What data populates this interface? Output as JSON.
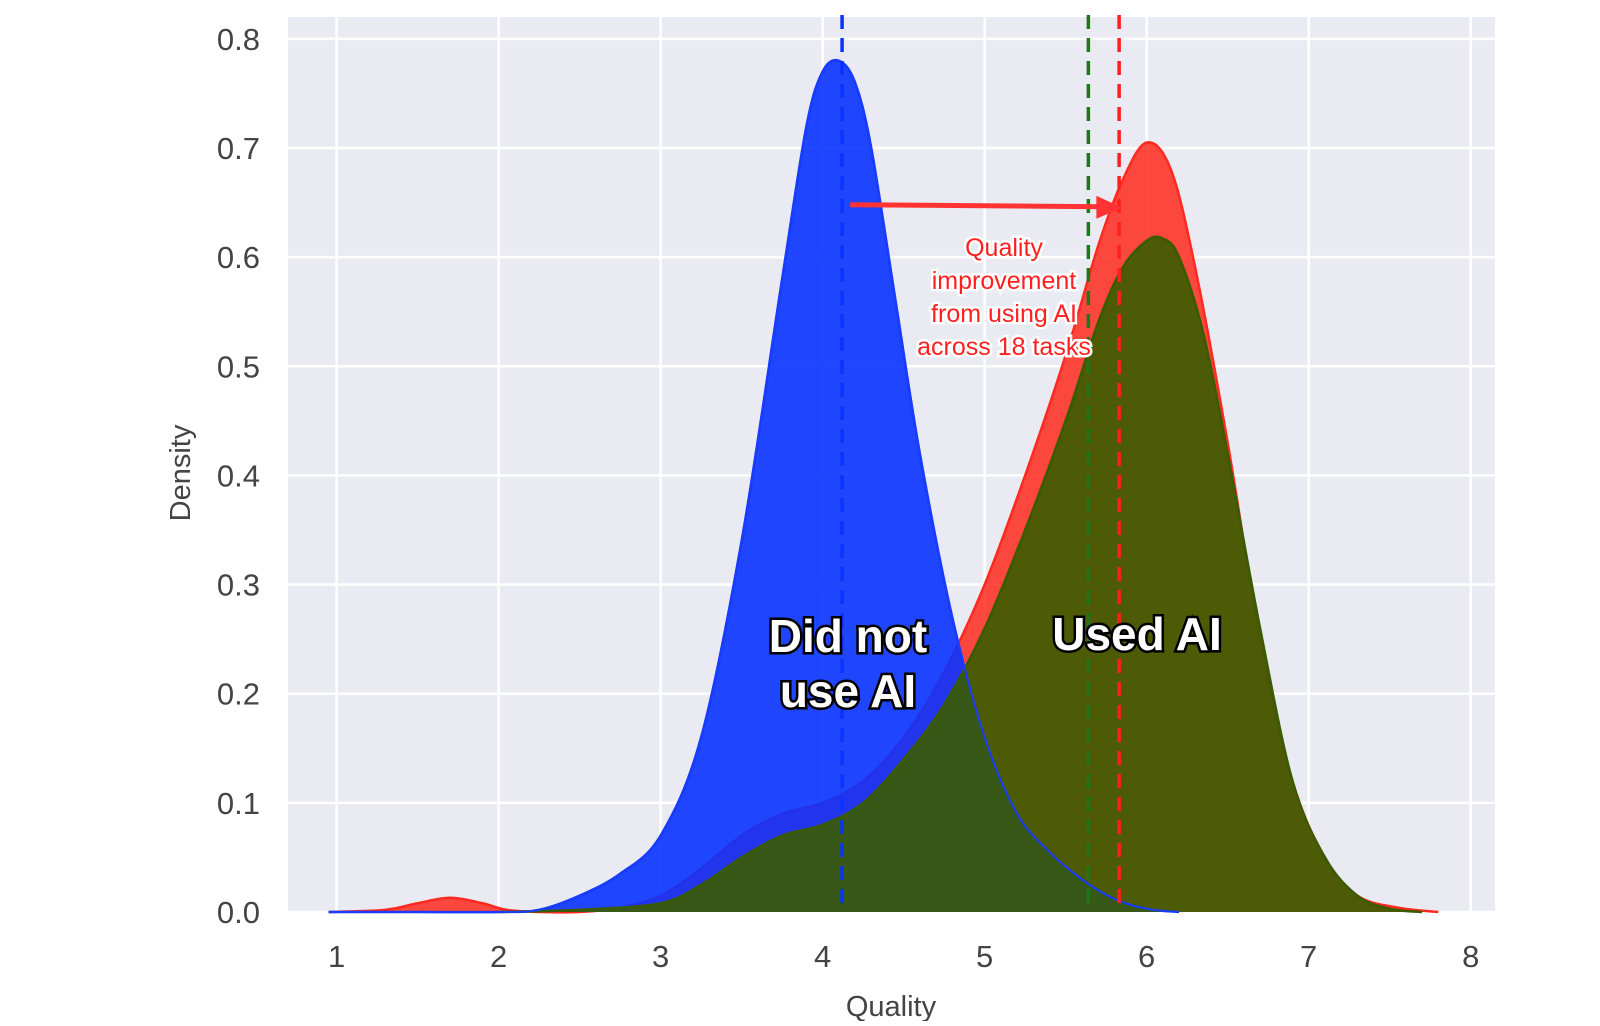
{
  "chart_data": {
    "type": "area",
    "xlabel": "Quality",
    "ylabel": "Density",
    "xlim": [
      0.7,
      8.15
    ],
    "ylim": [
      0,
      0.82
    ],
    "x_ticks": [
      1,
      2,
      3,
      4,
      5,
      6,
      7,
      8
    ],
    "y_ticks": [
      "0.0",
      "0.1",
      "0.2",
      "0.3",
      "0.4",
      "0.5",
      "0.6",
      "0.7",
      "0.8"
    ],
    "grid": true,
    "series": [
      {
        "color": "#ff2a1f",
        "x": [
          0.95,
          1.3,
          1.5,
          1.7,
          1.9,
          2.05,
          2.25,
          2.5,
          2.75,
          3.0,
          3.25,
          3.5,
          3.75,
          4.0,
          4.25,
          4.5,
          4.75,
          5.0,
          5.25,
          5.5,
          5.7,
          5.85,
          6.0,
          6.15,
          6.3,
          6.5,
          6.7,
          6.9,
          7.1,
          7.3,
          7.55,
          7.8
        ],
        "values": [
          0,
          0.002,
          0.008,
          0.013,
          0.008,
          0.002,
          0,
          0,
          0.004,
          0.015,
          0.04,
          0.07,
          0.09,
          0.1,
          0.12,
          0.16,
          0.22,
          0.3,
          0.4,
          0.51,
          0.61,
          0.67,
          0.705,
          0.68,
          0.59,
          0.43,
          0.25,
          0.12,
          0.05,
          0.015,
          0.004,
          0
        ]
      },
      {
        "color": "#0a33ff",
        "x": [
          0.95,
          1.5,
          2.0,
          2.25,
          2.5,
          2.75,
          3.0,
          3.25,
          3.5,
          3.75,
          3.9,
          4.0,
          4.1,
          4.2,
          4.3,
          4.45,
          4.6,
          4.8,
          5.0,
          5.2,
          5.4,
          5.6,
          5.8,
          6.0,
          6.2
        ],
        "values": [
          0,
          0,
          0,
          0.002,
          0.015,
          0.035,
          0.07,
          0.16,
          0.34,
          0.58,
          0.72,
          0.77,
          0.78,
          0.76,
          0.7,
          0.56,
          0.42,
          0.27,
          0.16,
          0.09,
          0.055,
          0.03,
          0.012,
          0.003,
          0
        ]
      },
      {
        "color": "#3a5c00",
        "x": [
          2.0,
          2.5,
          3.0,
          3.25,
          3.5,
          3.75,
          4.0,
          4.25,
          4.5,
          4.75,
          5.0,
          5.25,
          5.5,
          5.7,
          5.85,
          6.0,
          6.1,
          6.2,
          6.35,
          6.5,
          6.7,
          6.9,
          7.1,
          7.3,
          7.5,
          7.7
        ],
        "values": [
          0,
          0.002,
          0.008,
          0.025,
          0.05,
          0.07,
          0.08,
          0.1,
          0.14,
          0.19,
          0.26,
          0.35,
          0.45,
          0.54,
          0.59,
          0.615,
          0.617,
          0.6,
          0.53,
          0.42,
          0.26,
          0.12,
          0.05,
          0.015,
          0.003,
          0
        ]
      }
    ],
    "vlines": [
      {
        "x": 4.12,
        "color": "#0a33ff"
      },
      {
        "x": 5.64,
        "color": "#1a7a1a"
      },
      {
        "x": 5.83,
        "color": "#ff1f1f"
      }
    ],
    "annotations": {
      "arrow": {
        "x_from": 4.17,
        "x_to": 5.85,
        "y": 0.648,
        "color": "#ff3333"
      },
      "quality_note": [
        "Quality",
        "improvement",
        "from using AI",
        "across 18 tasks"
      ],
      "label_no_ai": [
        "Did not",
        "use AI"
      ],
      "label_ai": [
        "Used AI"
      ]
    }
  }
}
